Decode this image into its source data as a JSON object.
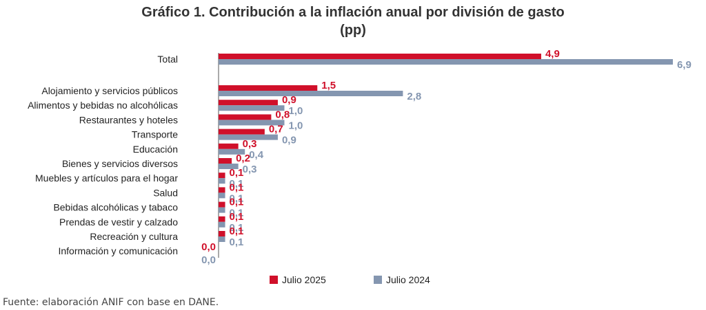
{
  "chart_data": {
    "type": "bar",
    "orientation": "horizontal",
    "title_line1": "Gráfico 1. Contribución a la inflación anual por división de gasto",
    "title_line2": "(pp)",
    "categories": [
      "Total",
      "Alojamiento y servicios públicos",
      "Alimentos y bebidas no alcohólicas",
      "Restaurantes y hoteles",
      "Transporte",
      "Educación",
      "Bienes y servicios diversos",
      "Muebles y artículos para el hogar",
      "Salud",
      "Bebidas alcohólicas y tabaco",
      "Prendas de vestir y calzado",
      "Recreación y cultura",
      "Información y comunicación"
    ],
    "series": [
      {
        "name": "Julio 2025",
        "color": "#d0102a",
        "values": [
          4.9,
          1.5,
          0.9,
          0.8,
          0.7,
          0.3,
          0.2,
          0.1,
          0.1,
          0.1,
          0.1,
          0.1,
          0.0
        ],
        "labels": [
          "4,9",
          "1,5",
          "0,9",
          "0,8",
          "0,7",
          "0,3",
          "0,2",
          "0,1",
          "0,1",
          "0,1",
          "0,1",
          "0,1",
          "0,0"
        ]
      },
      {
        "name": "Julio 2024",
        "color": "#8496b0",
        "values": [
          6.9,
          2.8,
          1.0,
          1.0,
          0.9,
          0.4,
          0.3,
          0.1,
          0.1,
          0.1,
          0.1,
          0.1,
          0.0
        ],
        "labels": [
          "6,9",
          "2,8",
          "1,0",
          "1,0",
          "0,9",
          "0,4",
          "0,3",
          "0,1",
          "0,1",
          "0,1",
          "0,1",
          "0,1",
          "0,0"
        ]
      }
    ],
    "xlim": [
      0,
      7
    ],
    "legend": "bottom",
    "grid": false
  },
  "source": "Fuente: elaboración ANIF con base en DANE."
}
